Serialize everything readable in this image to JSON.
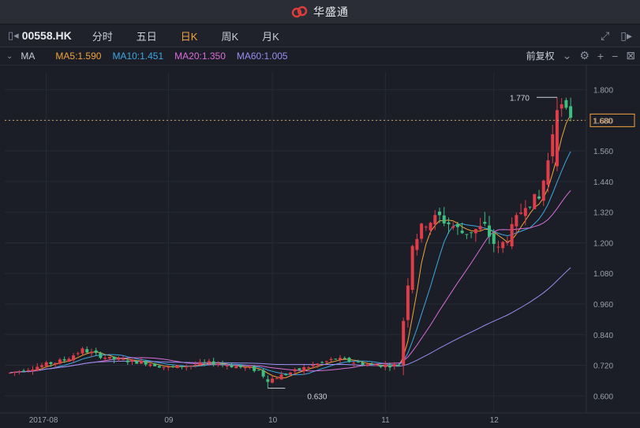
{
  "app": {
    "title": "华盛通",
    "colors": {
      "brand": "#e03c3c",
      "active": "#f0a33c"
    }
  },
  "toolbar": {
    "symbol": "00558.HK",
    "tabs": [
      {
        "label": "分时"
      },
      {
        "label": "五日"
      },
      {
        "label": "日K",
        "active": true
      },
      {
        "label": "周K"
      },
      {
        "label": "月K"
      }
    ]
  },
  "ma_bar": {
    "label": "MA",
    "items": [
      {
        "text": "MA5:1.590",
        "color": "#f0a33c"
      },
      {
        "text": "MA10:1.451",
        "color": "#3fa7e0"
      },
      {
        "text": "MA20:1.350",
        "color": "#d86fd8"
      },
      {
        "text": "MA60:1.005",
        "color": "#9b8cf0"
      }
    ],
    "adjust_label": "前复权"
  },
  "chart_data": {
    "type": "candlestick",
    "y_ticks": [
      "1.800",
      "1.680",
      "1.560",
      "1.440",
      "1.320",
      "1.200",
      "1.080",
      "0.960",
      "0.840",
      "0.720",
      "0.600"
    ],
    "ylim": [
      0.57,
      1.87
    ],
    "x_labels": [
      "2017-08",
      "09",
      "10",
      "11",
      "12"
    ],
    "current_price": "1.680",
    "high_label": "1.770",
    "low_label": "0.630",
    "ma_current": {
      "MA5": 1.59,
      "MA10": 1.451,
      "MA20": 1.35,
      "MA60": 1.005
    }
  }
}
